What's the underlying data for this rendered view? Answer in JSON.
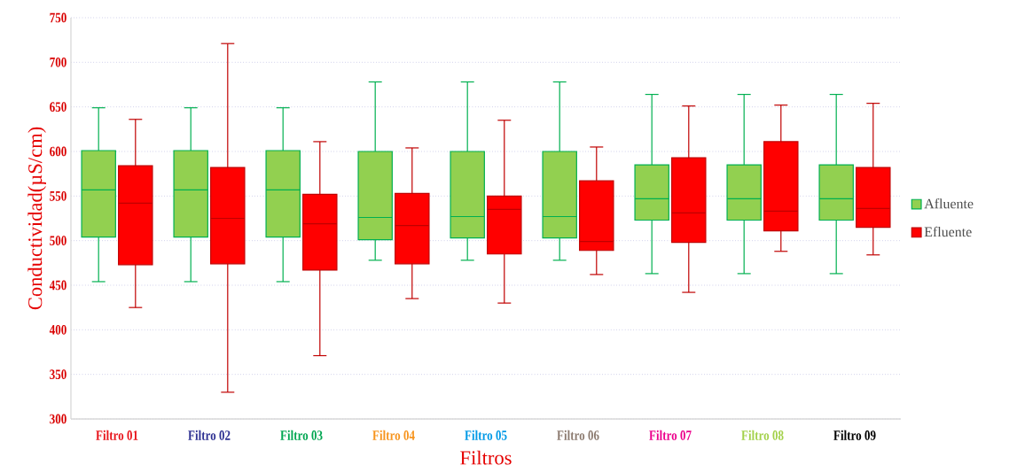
{
  "chart_data": {
    "type": "box",
    "xlabel": "Filtros",
    "ylabel": "Conductividad(µS/cm)",
    "categories": [
      "Filtro 01",
      "Filtro 02",
      "Filtro 03",
      "Filtro 04",
      "Filtro 05",
      "Filtro 06",
      "Filtro 07",
      "Filtro 08",
      "Filtro 09"
    ],
    "ylim": [
      300,
      750
    ],
    "yticks": [
      300,
      350,
      400,
      450,
      500,
      550,
      600,
      650,
      700,
      750
    ],
    "grid": "y",
    "legend": "right",
    "series": [
      {
        "name": "Afluente",
        "color": "#92d050",
        "boxes": [
          {
            "low": 454,
            "q1": 504,
            "median": 557,
            "q3": 601,
            "high": 649
          },
          {
            "low": 454,
            "q1": 504,
            "median": 557,
            "q3": 601,
            "high": 649
          },
          {
            "low": 454,
            "q1": 504,
            "median": 557,
            "q3": 601,
            "high": 649
          },
          {
            "low": 478,
            "q1": 501,
            "median": 526,
            "q3": 600,
            "high": 678
          },
          {
            "low": 478,
            "q1": 503,
            "median": 527,
            "q3": 600,
            "high": 678
          },
          {
            "low": 478,
            "q1": 503,
            "median": 527,
            "q3": 600,
            "high": 678
          },
          {
            "low": 463,
            "q1": 523,
            "median": 547,
            "q3": 585,
            "high": 664
          },
          {
            "low": 463,
            "q1": 523,
            "median": 547,
            "q3": 585,
            "high": 664
          },
          {
            "low": 463,
            "q1": 523,
            "median": 547,
            "q3": 585,
            "high": 664
          }
        ]
      },
      {
        "name": "Efluente",
        "color": "#ff0000",
        "boxes": [
          {
            "low": 425,
            "q1": 473,
            "median": 542,
            "q3": 584,
            "high": 636
          },
          {
            "low": 330,
            "q1": 474,
            "median": 525,
            "q3": 582,
            "high": 721
          },
          {
            "low": 371,
            "q1": 467,
            "median": 519,
            "q3": 552,
            "high": 611
          },
          {
            "low": 435,
            "q1": 474,
            "median": 517,
            "q3": 553,
            "high": 604
          },
          {
            "low": 430,
            "q1": 485,
            "median": 535,
            "q3": 550,
            "high": 635
          },
          {
            "low": 462,
            "q1": 489,
            "median": 499,
            "q3": 567,
            "high": 605
          },
          {
            "low": 442,
            "q1": 498,
            "median": 531,
            "q3": 593,
            "high": 651
          },
          {
            "low": 488,
            "q1": 511,
            "median": 533,
            "q3": 611,
            "high": 652
          },
          {
            "low": 484,
            "q1": 515,
            "median": 536,
            "q3": 582,
            "high": 654
          }
        ]
      }
    ]
  }
}
